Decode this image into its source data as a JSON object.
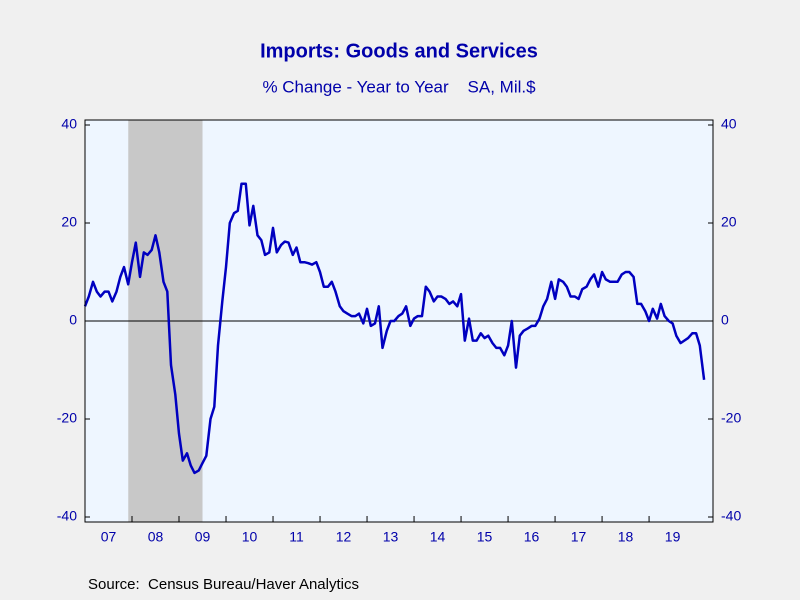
{
  "chart_data": {
    "type": "line",
    "title": "Imports: Goods and Services",
    "subtitle": "% Change - Year to Year    SA, Mil.$",
    "source": "Source:  Census Bureau/Haver Analytics",
    "x": [
      2007.0,
      2007.08,
      2007.17,
      2007.25,
      2007.33,
      2007.42,
      2007.5,
      2007.58,
      2007.67,
      2007.75,
      2007.83,
      2007.92,
      2008.0,
      2008.08,
      2008.17,
      2008.25,
      2008.33,
      2008.42,
      2008.5,
      2008.58,
      2008.67,
      2008.75,
      2008.83,
      2008.92,
      2009.0,
      2009.08,
      2009.17,
      2009.25,
      2009.33,
      2009.42,
      2009.5,
      2009.58,
      2009.67,
      2009.75,
      2009.83,
      2009.92,
      2010.0,
      2010.08,
      2010.17,
      2010.25,
      2010.33,
      2010.42,
      2010.5,
      2010.58,
      2010.67,
      2010.75,
      2010.83,
      2010.92,
      2011.0,
      2011.08,
      2011.17,
      2011.25,
      2011.33,
      2011.42,
      2011.5,
      2011.58,
      2011.67,
      2011.75,
      2011.83,
      2011.92,
      2012.0,
      2012.08,
      2012.17,
      2012.25,
      2012.33,
      2012.42,
      2012.5,
      2012.58,
      2012.67,
      2012.75,
      2012.83,
      2012.92,
      2013.0,
      2013.08,
      2013.17,
      2013.25,
      2013.33,
      2013.42,
      2013.5,
      2013.58,
      2013.67,
      2013.75,
      2013.83,
      2013.92,
      2014.0,
      2014.08,
      2014.17,
      2014.25,
      2014.33,
      2014.42,
      2014.5,
      2014.58,
      2014.67,
      2014.75,
      2014.83,
      2014.92,
      2015.0,
      2015.08,
      2015.17,
      2015.25,
      2015.33,
      2015.42,
      2015.5,
      2015.58,
      2015.67,
      2015.75,
      2015.83,
      2015.92,
      2016.0,
      2016.08,
      2016.17,
      2016.25,
      2016.33,
      2016.42,
      2016.5,
      2016.58,
      2016.67,
      2016.75,
      2016.83,
      2016.92,
      2017.0,
      2017.08,
      2017.17,
      2017.25,
      2017.33,
      2017.42,
      2017.5,
      2017.58,
      2017.67,
      2017.75,
      2017.83,
      2017.92,
      2018.0,
      2018.08,
      2018.17,
      2018.25,
      2018.33,
      2018.42,
      2018.5,
      2018.58,
      2018.67,
      2018.75,
      2018.83,
      2018.92,
      2019.0,
      2019.08,
      2019.17,
      2019.25,
      2019.33,
      2019.42,
      2019.5,
      2019.58,
      2019.67,
      2019.75,
      2019.83,
      2019.92,
      2020.0,
      2020.08,
      2020.17
    ],
    "series": [
      {
        "color": "#0000c0",
        "values": [
          3,
          5,
          8,
          6,
          5,
          6,
          6,
          4,
          6,
          9,
          11,
          7.5,
          12,
          16,
          9,
          14,
          13.5,
          14.5,
          17.5,
          14,
          8,
          6,
          -9,
          -15,
          -23,
          -28.5,
          -27,
          -29.5,
          -31,
          -30.5,
          -29,
          -27.5,
          -20,
          -17.5,
          -5,
          4,
          11,
          20,
          22,
          22.5,
          28,
          28,
          19.5,
          23.5,
          17.5,
          16.5,
          13.5,
          14,
          19,
          14,
          15.5,
          16.2,
          16,
          13.5,
          15,
          12,
          12,
          11.8,
          11.5,
          12,
          10,
          7,
          7,
          8,
          6,
          3,
          2,
          1.5,
          1,
          1,
          1.5,
          -0.5,
          2.5,
          -1,
          -0.5,
          3,
          -5.5,
          -2,
          0,
          0,
          1,
          1.5,
          3,
          -1,
          0.5,
          1,
          1,
          7,
          6,
          4,
          5,
          5,
          4.5,
          3.5,
          4,
          3,
          5.5,
          -4,
          0.5,
          -4,
          -4,
          -2.5,
          -3.5,
          -3,
          -4.5,
          -5.5,
          -5.5,
          -7,
          -5,
          0,
          -9.5,
          -3,
          -2,
          -1.5,
          -1,
          -1,
          0.5,
          3,
          4.5,
          8,
          4.5,
          8.5,
          8,
          7,
          5,
          5,
          4.5,
          6.5,
          7,
          8.5,
          9.5,
          7,
          10,
          8.5,
          8,
          8,
          8,
          9.5,
          10,
          10,
          9,
          3.5,
          3.5,
          2,
          0,
          2.5,
          0.5,
          3.5,
          1,
          0,
          -0.5,
          -3,
          -4.5,
          -4,
          -3.5,
          -2.5,
          -2.5,
          -5,
          -12
        ]
      }
    ],
    "recessions": [
      [
        2007.92,
        2009.5
      ]
    ],
    "xlim": [
      2007,
      2020.36
    ],
    "xticks": [
      {
        "value": 2007.5,
        "label": "07"
      },
      {
        "value": 2008.5,
        "label": "08"
      },
      {
        "value": 2009.5,
        "label": "09"
      },
      {
        "value": 2010.5,
        "label": "10"
      },
      {
        "value": 2011.5,
        "label": "11"
      },
      {
        "value": 2012.5,
        "label": "12"
      },
      {
        "value": 2013.5,
        "label": "13"
      },
      {
        "value": 2014.5,
        "label": "14"
      },
      {
        "value": 2015.5,
        "label": "15"
      },
      {
        "value": 2016.5,
        "label": "16"
      },
      {
        "value": 2017.5,
        "label": "17"
      },
      {
        "value": 2018.5,
        "label": "18"
      },
      {
        "value": 2019.5,
        "label": "19"
      }
    ],
    "ylim": [
      -40,
      40
    ],
    "yticks": [
      -40,
      -20,
      0,
      20,
      40
    ],
    "y2lim": [
      -40,
      40
    ],
    "y2ticks": [
      -40,
      -20,
      0,
      20,
      40
    ]
  }
}
